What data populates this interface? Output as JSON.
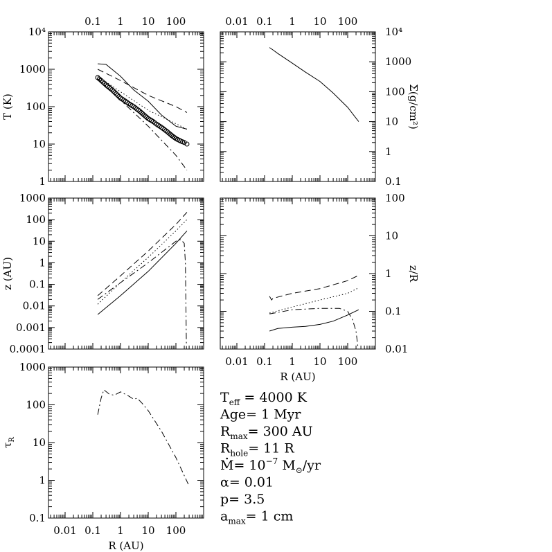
{
  "figure": {
    "params": [
      {
        "key": "T_eff",
        "sym": "T",
        "sub": "eff",
        "value": " =  4000   K"
      },
      {
        "key": "age",
        "sym": "Age",
        "sub": "",
        "value": "=  1    Myr"
      },
      {
        "key": "R_max",
        "sym": "R",
        "sub": "max",
        "value": "=  300   AU"
      },
      {
        "key": "R_hole",
        "sym": "R",
        "sub": "hole",
        "value": "=  11  R"
      },
      {
        "key": "Mdot",
        "sym": "M",
        "sub": "",
        "value": "=  10",
        "sup": "−7",
        "tail": " M",
        "tail_sub": "⊙",
        "tail2": "/yr"
      },
      {
        "key": "alpha",
        "sym": "α",
        "sub": "",
        "value": "=  0.01"
      },
      {
        "key": "p",
        "sym": "p",
        "sub": "",
        "value": "=  3.5"
      },
      {
        "key": "a_max",
        "sym": "a",
        "sub": "max",
        "value": "=  1  cm"
      }
    ]
  },
  "chart_data": [
    {
      "id": "T-panel",
      "type": "line",
      "ylabel": "T (K)",
      "xscale": "log",
      "yscale": "log",
      "xlim": [
        0.00251,
        1000
      ],
      "ylim": [
        1,
        10000
      ],
      "xticks_top": [
        "0.1",
        "1",
        "10",
        "100"
      ],
      "yticklabels": [
        "1",
        "10",
        "100",
        "1000",
        "10⁴"
      ],
      "series": [
        {
          "style": "solid",
          "x": [
            0.15,
            0.3,
            1,
            3,
            10,
            30,
            100,
            250
          ],
          "y": [
            1400,
            1350,
            650,
            280,
            140,
            60,
            30,
            25
          ]
        },
        {
          "style": "dashed",
          "x": [
            0.15,
            1,
            10,
            100,
            250
          ],
          "y": [
            1000,
            500,
            200,
            100,
            70
          ]
        },
        {
          "style": "dotted",
          "x": [
            0.15,
            1,
            10,
            100,
            250
          ],
          "y": [
            650,
            250,
            80,
            35,
            25
          ]
        },
        {
          "style": "dashdot",
          "x": [
            0.15,
            1,
            10,
            100,
            250
          ],
          "y": [
            550,
            150,
            30,
            5,
            2
          ]
        },
        {
          "style": "circles",
          "x": [
            0.15,
            0.2,
            0.3,
            0.5,
            0.7,
            1,
            1.5,
            2,
            3,
            5,
            7,
            10,
            15,
            20,
            30,
            50,
            70,
            100,
            150,
            200,
            250
          ],
          "y": [
            600,
            500,
            380,
            280,
            220,
            170,
            140,
            120,
            100,
            75,
            60,
            48,
            40,
            34,
            28,
            21,
            17,
            14,
            12,
            11,
            10
          ]
        }
      ]
    },
    {
      "id": "sigma-panel",
      "type": "line",
      "ylabel": "Σ(g/cm²)",
      "xscale": "log",
      "yscale": "log",
      "xlim": [
        0.00251,
        1000
      ],
      "ylim": [
        0.1,
        10000
      ],
      "xticks_top": [
        "0.01",
        "0.1",
        "1",
        "10",
        "100"
      ],
      "yticklabels": [
        "0.1",
        "1",
        "10",
        "100",
        "1000",
        "10⁴"
      ],
      "series": [
        {
          "style": "solid",
          "x": [
            0.15,
            0.2,
            0.3,
            1,
            3,
            10,
            30,
            100,
            250
          ],
          "y": [
            3000,
            2500,
            1900,
            900,
            450,
            220,
            90,
            30,
            10
          ]
        }
      ]
    },
    {
      "id": "z-panel",
      "type": "line",
      "ylabel": "z (AU)",
      "xscale": "log",
      "yscale": "log",
      "xlim": [
        0.00251,
        1000
      ],
      "ylim": [
        0.0001,
        1000
      ],
      "yticklabels": [
        "0.0001",
        "0.001",
        "0.01",
        "0.1",
        "1",
        "10",
        "100",
        "1000"
      ],
      "series": [
        {
          "style": "solid",
          "x": [
            0.15,
            1,
            10,
            100,
            250
          ],
          "y": [
            0.004,
            0.03,
            0.4,
            8,
            30
          ]
        },
        {
          "style": "dashed",
          "x": [
            0.15,
            1,
            10,
            100,
            250
          ],
          "y": [
            0.03,
            0.25,
            3.5,
            60,
            220
          ]
        },
        {
          "style": "dotted",
          "x": [
            0.15,
            1,
            10,
            100,
            250
          ],
          "y": [
            0.012,
            0.12,
            1.8,
            30,
            100
          ]
        },
        {
          "style": "dashdot",
          "x": [
            0.15,
            1,
            10,
            100,
            150,
            200,
            220,
            240
          ],
          "y": [
            0.02,
            0.12,
            1.0,
            10,
            12,
            8,
            1,
            0.0001
          ]
        }
      ]
    },
    {
      "id": "zR-panel",
      "type": "line",
      "ylabel": "z/R",
      "xlabel": "R (AU)",
      "xscale": "log",
      "yscale": "log",
      "xlim": [
        0.00251,
        1000
      ],
      "ylim": [
        0.01,
        100
      ],
      "xticklabels": [
        "0.01",
        "0.1",
        "1",
        "10",
        "100"
      ],
      "yticklabels": [
        "0.01",
        "0.1",
        "1",
        "10",
        "100"
      ],
      "series": [
        {
          "style": "solid",
          "x": [
            0.15,
            0.3,
            1,
            3,
            10,
            30,
            100,
            250
          ],
          "y": [
            0.03,
            0.035,
            0.038,
            0.04,
            0.045,
            0.055,
            0.08,
            0.11
          ]
        },
        {
          "style": "dashed",
          "x": [
            0.15,
            0.18,
            0.2,
            1,
            10,
            100,
            250
          ],
          "y": [
            0.25,
            0.2,
            0.22,
            0.3,
            0.4,
            0.65,
            0.9
          ]
        },
        {
          "style": "dotted",
          "x": [
            0.15,
            1,
            10,
            100,
            250
          ],
          "y": [
            0.09,
            0.13,
            0.2,
            0.3,
            0.42
          ]
        },
        {
          "style": "dashdot",
          "x": [
            0.15,
            1,
            10,
            50,
            100,
            150,
            200,
            240
          ],
          "y": [
            0.085,
            0.11,
            0.12,
            0.12,
            0.1,
            0.06,
            0.03,
            0.01
          ]
        }
      ]
    },
    {
      "id": "tau-panel",
      "type": "line",
      "ylabel": "τR",
      "xlabel": "R (AU)",
      "xscale": "log",
      "yscale": "log",
      "xlim": [
        0.00251,
        1000
      ],
      "ylim": [
        0.1,
        1000
      ],
      "xticklabels": [
        "0.01",
        "0.1",
        "1",
        "10",
        "100"
      ],
      "yticklabels": [
        "0.1",
        "1",
        "10",
        "100",
        "1000"
      ],
      "series": [
        {
          "style": "dashdot",
          "x": [
            0.15,
            0.2,
            0.25,
            0.4,
            0.6,
            1,
            1.3,
            2,
            3,
            4,
            6,
            10,
            30,
            100,
            300
          ],
          "y": [
            55,
            150,
            250,
            190,
            180,
            220,
            200,
            170,
            140,
            150,
            110,
            70,
            20,
            4,
            0.7
          ]
        }
      ]
    }
  ]
}
